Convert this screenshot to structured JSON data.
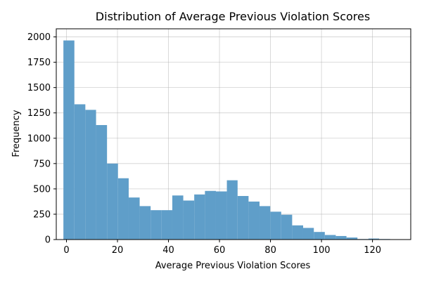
{
  "chart_data": {
    "type": "bar",
    "subtype": "histogram",
    "title": "Distribution of Average Previous Violation Scores",
    "xlabel": "Average Previous Violation Scores",
    "ylabel": "Frequency",
    "xlim": [
      -4,
      135
    ],
    "ylim": [
      0,
      2080
    ],
    "xticks": [
      0,
      20,
      40,
      60,
      80,
      100,
      120
    ],
    "yticks": [
      0,
      250,
      500,
      750,
      1000,
      1250,
      1500,
      1750,
      2000
    ],
    "grid": true,
    "bar_color": "#5f9ec9",
    "bins": [
      {
        "x0": -1.2,
        "x1": 3.1,
        "count": 1965
      },
      {
        "x0": 3.1,
        "x1": 7.4,
        "count": 1335
      },
      {
        "x0": 7.4,
        "x1": 11.6,
        "count": 1280
      },
      {
        "x0": 11.6,
        "x1": 15.9,
        "count": 1130
      },
      {
        "x0": 15.9,
        "x1": 20.2,
        "count": 750
      },
      {
        "x0": 20.2,
        "x1": 24.4,
        "count": 605
      },
      {
        "x0": 24.4,
        "x1": 28.7,
        "count": 415
      },
      {
        "x0": 28.7,
        "x1": 33.0,
        "count": 330
      },
      {
        "x0": 33.0,
        "x1": 37.3,
        "count": 290
      },
      {
        "x0": 37.3,
        "x1": 41.5,
        "count": 290
      },
      {
        "x0": 41.5,
        "x1": 45.8,
        "count": 435
      },
      {
        "x0": 45.8,
        "x1": 50.1,
        "count": 385
      },
      {
        "x0": 50.1,
        "x1": 54.3,
        "count": 445
      },
      {
        "x0": 54.3,
        "x1": 58.6,
        "count": 480
      },
      {
        "x0": 58.6,
        "x1": 62.9,
        "count": 475
      },
      {
        "x0": 62.9,
        "x1": 67.1,
        "count": 585
      },
      {
        "x0": 67.1,
        "x1": 71.4,
        "count": 430
      },
      {
        "x0": 71.4,
        "x1": 75.7,
        "count": 375
      },
      {
        "x0": 75.7,
        "x1": 79.9,
        "count": 330
      },
      {
        "x0": 79.9,
        "x1": 84.2,
        "count": 275
      },
      {
        "x0": 84.2,
        "x1": 88.5,
        "count": 245
      },
      {
        "x0": 88.5,
        "x1": 92.8,
        "count": 140
      },
      {
        "x0": 92.8,
        "x1": 97.0,
        "count": 115
      },
      {
        "x0": 97.0,
        "x1": 101.3,
        "count": 75
      },
      {
        "x0": 101.3,
        "x1": 105.6,
        "count": 45
      },
      {
        "x0": 105.6,
        "x1": 109.8,
        "count": 35
      },
      {
        "x0": 109.8,
        "x1": 114.1,
        "count": 20
      },
      {
        "x0": 114.1,
        "x1": 118.4,
        "count": 5
      },
      {
        "x0": 118.4,
        "x1": 122.6,
        "count": 10
      },
      {
        "x0": 122.6,
        "x1": 126.9,
        "count": 5
      },
      {
        "x0": 126.9,
        "x1": 131.2,
        "count": 0
      }
    ]
  }
}
